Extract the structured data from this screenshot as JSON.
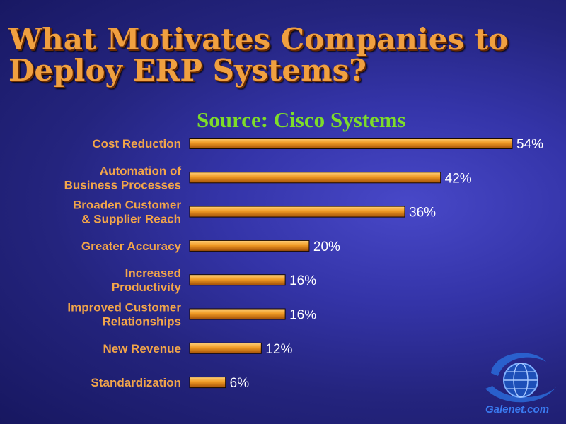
{
  "slide": {
    "title": "What Motivates Companies to Deploy ERP Systems?",
    "subtitle": "Source: Cisco Systems",
    "logo_text": "Galenet.com"
  },
  "colors": {
    "bar_top": "#ffd07a",
    "bar_mid": "#f09a24",
    "bar_bottom": "#a04e06",
    "category_label": "#f2a54a",
    "value_label": "#ffffff"
  },
  "chart_data": {
    "type": "bar",
    "orientation": "horizontal",
    "title": "What Motivates Companies to Deploy ERP Systems?",
    "subtitle": "Source: Cisco Systems",
    "categories": [
      [
        "Cost Reduction"
      ],
      [
        "Automation of",
        "Business Processes"
      ],
      [
        "Broaden Customer",
        "& Supplier Reach"
      ],
      [
        "Greater Accuracy"
      ],
      [
        "Increased",
        "Productivity"
      ],
      [
        "Improved Customer",
        "Relationships"
      ],
      [
        "New Revenue"
      ],
      [
        "Standardization"
      ]
    ],
    "values": [
      54,
      42,
      36,
      20,
      16,
      16,
      12,
      6
    ],
    "value_labels": [
      "54%",
      "42%",
      "36%",
      "20%",
      "16%",
      "16%",
      "12%",
      "6%"
    ],
    "xlim": [
      0,
      54
    ],
    "grid": false,
    "legend": "none"
  }
}
